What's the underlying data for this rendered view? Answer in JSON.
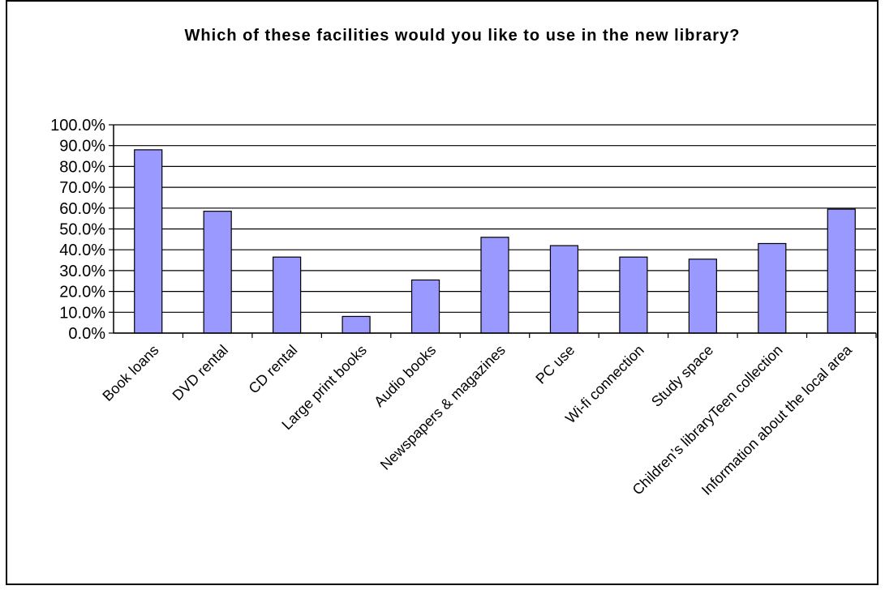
{
  "chart_data": {
    "type": "bar",
    "title": "Which of these facilities would you like to use in the new library?",
    "xlabel": "",
    "ylabel": "",
    "categories": [
      "Book loans",
      "DVD rental",
      "CD rental",
      "Large print books",
      "Audio books",
      "Newspapers & magazines",
      "PC use",
      "Wi-fi connection",
      "Study space",
      "Children’s libraryTeen collection",
      "Information about the local area"
    ],
    "series": [
      {
        "values": [
          0.88,
          0.585,
          0.365,
          0.08,
          0.255,
          0.46,
          0.42,
          0.365,
          0.355,
          0.43,
          0.595
        ]
      }
    ],
    "ylim": [
      0,
      1.0
    ],
    "yticks": [
      "0.0%",
      "10.0%",
      "20.0%",
      "30.0%",
      "40.0%",
      "50.0%",
      "60.0%",
      "70.0%",
      "80.0%",
      "90.0%",
      "100.0%"
    ],
    "grid": true,
    "legend": "none",
    "bar_color": "#9999FF"
  }
}
